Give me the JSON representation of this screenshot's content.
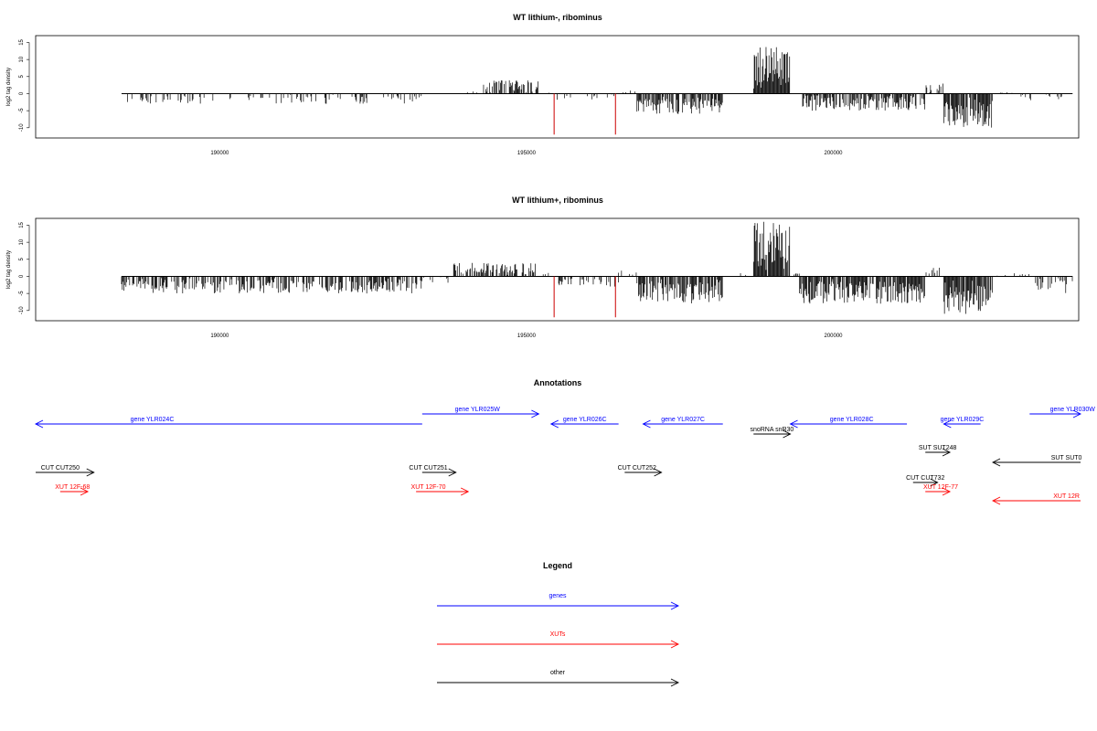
{
  "colors": {
    "gene": "#0000ff",
    "xut": "#ff0000",
    "other": "#000000",
    "spike": "#cc0000"
  },
  "chart_data": [
    {
      "type": "bar",
      "title": "WT lithium-, ribominus",
      "ylabel": "log2 tag density",
      "xlim": [
        187000,
        204000
      ],
      "ylim": [
        -13,
        17
      ],
      "xticks": [
        "190000",
        "195000",
        "200000"
      ],
      "yticks": [
        "15",
        "10",
        "5",
        "0",
        "-5",
        "-10"
      ],
      "seed": 3,
      "segments": [
        {
          "x0": 188400,
          "x1": 193300,
          "sign": -1,
          "amp": 3,
          "p": 0.22
        },
        {
          "x0": 193300,
          "x1": 194000,
          "sign": -1,
          "amp": 0,
          "p": 0
        },
        {
          "x0": 194000,
          "x1": 194300,
          "sign": 1,
          "amp": 1,
          "p": 0.15
        },
        {
          "x0": 194300,
          "x1": 195200,
          "sign": 1,
          "amp": 4,
          "p": 0.5
        },
        {
          "x0": 195200,
          "x1": 195500,
          "sign": 1,
          "amp": 0.5,
          "p": 0.05
        },
        {
          "x0": 195500,
          "x1": 196500,
          "sign": -1,
          "amp": 2,
          "p": 0.18
        },
        {
          "x0": 196500,
          "x1": 196800,
          "sign": 1,
          "amp": 1,
          "p": 0.1
        },
        {
          "x0": 196800,
          "x1": 198200,
          "sign": -1,
          "amp": 6,
          "p": 0.75
        },
        {
          "x0": 198200,
          "x1": 198700,
          "sign": -1,
          "amp": 0,
          "p": 0
        },
        {
          "x0": 198700,
          "x1": 199300,
          "sign": 1,
          "amp": 14,
          "p": 0.95
        },
        {
          "x0": 199300,
          "x1": 199500,
          "sign": -1,
          "amp": 0,
          "p": 0
        },
        {
          "x0": 199500,
          "x1": 201500,
          "sign": -1,
          "amp": 5,
          "p": 0.65
        },
        {
          "x0": 201500,
          "x1": 201800,
          "sign": 1,
          "amp": 3,
          "p": 0.3
        },
        {
          "x0": 201800,
          "x1": 202600,
          "sign": -1,
          "amp": 10,
          "p": 0.9
        },
        {
          "x0": 202600,
          "x1": 203000,
          "sign": 1,
          "amp": 0.5,
          "p": 0.08
        },
        {
          "x0": 203000,
          "x1": 203900,
          "sign": -1,
          "amp": 2,
          "p": 0.12
        }
      ],
      "spikes": [
        {
          "x": 195450,
          "y": -12
        },
        {
          "x": 196450,
          "y": -12
        }
      ]
    },
    {
      "type": "bar",
      "title": "WT lithium+, ribominus",
      "ylabel": "log2 tag density",
      "xlim": [
        187000,
        204000
      ],
      "ylim": [
        -13,
        17
      ],
      "xticks": [
        "190000",
        "195000",
        "200000"
      ],
      "yticks": [
        "15",
        "10",
        "5",
        "0",
        "-5",
        "-10"
      ],
      "seed": 11,
      "segments": [
        {
          "x0": 188400,
          "x1": 193300,
          "sign": -1,
          "amp": 5,
          "p": 0.55
        },
        {
          "x0": 193300,
          "x1": 193800,
          "sign": -1,
          "amp": 2,
          "p": 0.2
        },
        {
          "x0": 193800,
          "x1": 195200,
          "sign": 1,
          "amp": 4,
          "p": 0.55
        },
        {
          "x0": 195200,
          "x1": 195500,
          "sign": 1,
          "amp": 1,
          "p": 0.1
        },
        {
          "x0": 195500,
          "x1": 196500,
          "sign": -1,
          "amp": 3,
          "p": 0.35
        },
        {
          "x0": 196500,
          "x1": 196800,
          "sign": 1,
          "amp": 2,
          "p": 0.2
        },
        {
          "x0": 196800,
          "x1": 198200,
          "sign": -1,
          "amp": 8,
          "p": 0.8
        },
        {
          "x0": 198200,
          "x1": 198700,
          "sign": 1,
          "amp": 1,
          "p": 0.15
        },
        {
          "x0": 198700,
          "x1": 199300,
          "sign": 1,
          "amp": 16,
          "p": 0.95
        },
        {
          "x0": 199300,
          "x1": 199450,
          "sign": 1,
          "amp": 1,
          "p": 0.2
        },
        {
          "x0": 199450,
          "x1": 201500,
          "sign": -1,
          "amp": 8,
          "p": 0.85
        },
        {
          "x0": 201500,
          "x1": 201800,
          "sign": 1,
          "amp": 4,
          "p": 0.3
        },
        {
          "x0": 201800,
          "x1": 202600,
          "sign": -1,
          "amp": 11,
          "p": 0.9
        },
        {
          "x0": 202600,
          "x1": 203200,
          "sign": 1,
          "amp": 1,
          "p": 0.15
        },
        {
          "x0": 203200,
          "x1": 203900,
          "sign": -1,
          "amp": 5,
          "p": 0.4
        }
      ],
      "spikes": [
        {
          "x": 195450,
          "y": -12
        },
        {
          "x": 196450,
          "y": -12
        }
      ]
    }
  ],
  "annotations": {
    "title": "Annotations",
    "xlim": [
      187000,
      204000
    ],
    "features": [
      {
        "label": "gene YLR024C",
        "kind": "gene",
        "start": 187000,
        "end": 193300,
        "strand": "-",
        "row": 0,
        "label_x": 188900
      },
      {
        "label": "gene YLR025W",
        "kind": "gene",
        "start": 193300,
        "end": 195200,
        "strand": "+",
        "row": -1,
        "label_x": 194200
      },
      {
        "label": "gene YLR026C",
        "kind": "gene",
        "start": 195400,
        "end": 196500,
        "strand": "-",
        "row": 0,
        "label_x": 195950
      },
      {
        "label": "gene YLR027C",
        "kind": "gene",
        "start": 196900,
        "end": 198200,
        "strand": "-",
        "row": 0,
        "label_x": 197550
      },
      {
        "label": "snoRNA snR30",
        "kind": "other",
        "start": 198700,
        "end": 199300,
        "strand": "+",
        "row": 1,
        "label_x": 199000
      },
      {
        "label": "gene YLR028C",
        "kind": "gene",
        "start": 199300,
        "end": 201200,
        "strand": "-",
        "row": 0,
        "label_x": 200300
      },
      {
        "label": "gene YLR029C",
        "kind": "gene",
        "start": 201800,
        "end": 202400,
        "strand": "-",
        "row": 0,
        "label_x": 202100
      },
      {
        "label": "gene YLR030W",
        "kind": "gene",
        "start": 203200,
        "end": 205000,
        "strand": "+",
        "row": -1,
        "label_x": 203900
      },
      {
        "label": "SUT SUT248",
        "kind": "other",
        "start": 201500,
        "end": 201900,
        "strand": "+",
        "row": 3,
        "label_x": 201700
      },
      {
        "label": "SUT SUT0",
        "kind": "other",
        "start": 202600,
        "end": 205000,
        "strand": "-",
        "row": 4,
        "label_x": 203800
      },
      {
        "label": "CUT CUT250",
        "kind": "other",
        "start": 187000,
        "end": 187950,
        "strand": "+",
        "row": 5,
        "label_x": 187400
      },
      {
        "label": "CUT CUT251",
        "kind": "other",
        "start": 193300,
        "end": 193850,
        "strand": "+",
        "row": 5,
        "label_x": 193400
      },
      {
        "label": "CUT CUT252",
        "kind": "other",
        "start": 196600,
        "end": 197200,
        "strand": "+",
        "row": 5,
        "label_x": 196800
      },
      {
        "label": "CUT CUT732",
        "kind": "other",
        "start": 201300,
        "end": 201700,
        "strand": "+",
        "row": 6,
        "label_x": 201500
      },
      {
        "label": "XUT 12F-68",
        "kind": "xut",
        "start": 187400,
        "end": 187850,
        "strand": "+",
        "row": 7,
        "label_x": 187600
      },
      {
        "label": "XUT 12F-70",
        "kind": "xut",
        "start": 193200,
        "end": 194050,
        "strand": "+",
        "row": 7,
        "label_x": 193400
      },
      {
        "label": "XUT 12F-77",
        "kind": "xut",
        "start": 201500,
        "end": 201900,
        "strand": "+",
        "row": 7,
        "label_x": 201750
      },
      {
        "label": "XUT 12R",
        "kind": "xut",
        "start": 202600,
        "end": 205000,
        "strand": "-",
        "row": 8,
        "label_x": 203800
      }
    ]
  },
  "legend": {
    "title": "Legend",
    "items": [
      {
        "label": "genes",
        "kind": "gene"
      },
      {
        "label": "XUTs",
        "kind": "xut"
      },
      {
        "label": "other",
        "kind": "other"
      }
    ]
  }
}
